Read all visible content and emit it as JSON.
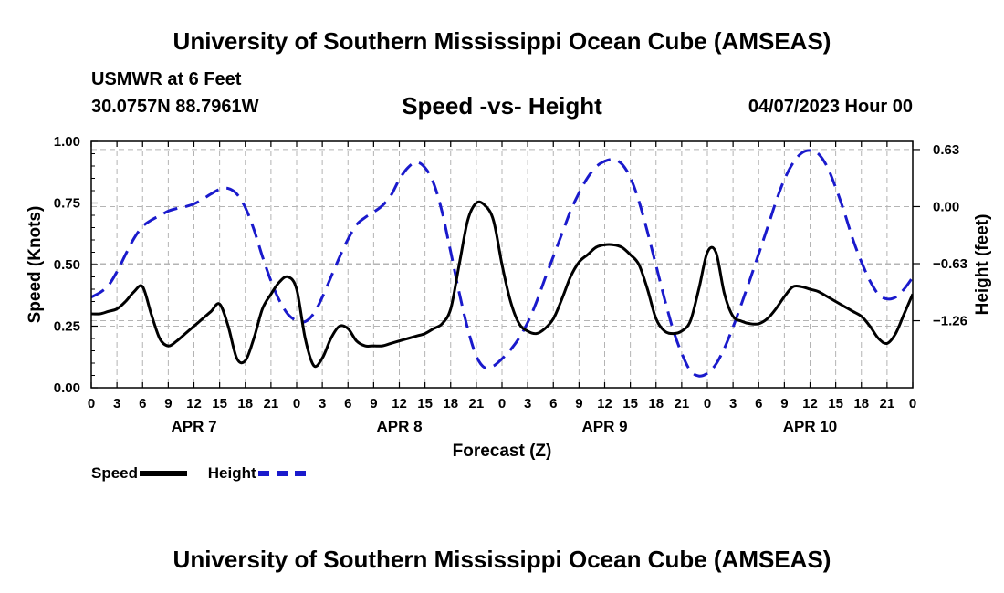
{
  "header": {
    "title": "University of Southern Mississippi Ocean Cube (AMSEAS)",
    "station": "USMWR at 6 Feet",
    "coords": "30.0757N  88.7961W",
    "chart_title": "Speed -vs- Height",
    "run_time": "04/07/2023 Hour 00"
  },
  "footer": {
    "title": "University of Southern Mississippi Ocean Cube (AMSEAS)"
  },
  "legend": {
    "speed_label": "Speed",
    "height_label": "Height"
  },
  "colors": {
    "speed": "#000000",
    "height": "#1a1acc",
    "grid": "#b4b4b4"
  },
  "chart_data": {
    "type": "line",
    "title": "Speed -vs- Height",
    "xlabel": "Forecast (Z)",
    "ylabel": "Speed (Knots)",
    "y2label": "Height (feet)",
    "x_range_hours": [
      0,
      96
    ],
    "ylim": [
      0,
      1
    ],
    "y_ticks": [
      "0.00",
      "0.25",
      "0.50",
      "0.75",
      "1.00"
    ],
    "y2lim": [
      -2.0,
      0.72
    ],
    "y2_ticks": [
      {
        "value": 0.63,
        "label": "0.63"
      },
      {
        "value": 0.0,
        "label": "0.00"
      },
      {
        "value": -0.63,
        "label": "−0.63"
      },
      {
        "value": -1.26,
        "label": "−1.26"
      }
    ],
    "x_tick_labels": [
      "0",
      "3",
      "6",
      "9",
      "12",
      "15",
      "18",
      "21",
      "0",
      "3",
      "6",
      "9",
      "12",
      "15",
      "18",
      "21",
      "0",
      "3",
      "6",
      "9",
      "12",
      "15",
      "18",
      "21",
      "0",
      "3",
      "6",
      "9",
      "12",
      "15",
      "18",
      "21",
      "0"
    ],
    "day_labels": [
      {
        "hour": 12,
        "label": "APR 7"
      },
      {
        "hour": 36,
        "label": "APR 8"
      },
      {
        "hour": 60,
        "label": "APR 9"
      },
      {
        "hour": 84,
        "label": "APR 10"
      }
    ],
    "series": [
      {
        "name": "Speed",
        "axis": "left",
        "x": [
          0,
          1,
          2,
          3,
          4,
          5,
          6,
          7,
          8,
          9,
          10,
          11,
          12,
          13,
          14,
          15,
          16,
          17,
          18,
          19,
          20,
          21,
          22,
          23,
          24,
          25,
          26,
          27,
          28,
          29,
          30,
          31,
          32,
          33,
          34,
          35,
          36,
          37,
          38,
          39,
          40,
          41,
          42,
          43,
          44,
          45,
          46,
          47,
          48,
          49,
          50,
          51,
          52,
          53,
          54,
          55,
          56,
          57,
          58,
          59,
          60,
          61,
          62,
          63,
          64,
          65,
          66,
          67,
          68,
          69,
          70,
          71,
          72,
          73,
          74,
          75,
          76,
          77,
          78,
          79,
          80,
          81,
          82,
          83,
          84,
          85,
          86,
          87,
          88,
          89,
          90,
          91,
          92,
          93,
          94,
          95,
          96
        ],
        "values": [
          0.3,
          0.3,
          0.31,
          0.32,
          0.35,
          0.39,
          0.41,
          0.3,
          0.2,
          0.17,
          0.19,
          0.22,
          0.25,
          0.28,
          0.31,
          0.34,
          0.25,
          0.12,
          0.11,
          0.2,
          0.32,
          0.38,
          0.43,
          0.45,
          0.4,
          0.2,
          0.09,
          0.12,
          0.2,
          0.25,
          0.24,
          0.19,
          0.17,
          0.17,
          0.17,
          0.18,
          0.19,
          0.2,
          0.21,
          0.22,
          0.24,
          0.26,
          0.32,
          0.5,
          0.68,
          0.75,
          0.74,
          0.68,
          0.5,
          0.35,
          0.26,
          0.23,
          0.22,
          0.24,
          0.28,
          0.36,
          0.45,
          0.51,
          0.54,
          0.57,
          0.58,
          0.58,
          0.57,
          0.54,
          0.5,
          0.4,
          0.28,
          0.23,
          0.22,
          0.23,
          0.27,
          0.4,
          0.55,
          0.55,
          0.38,
          0.29,
          0.27,
          0.26,
          0.26,
          0.28,
          0.32,
          0.37,
          0.41,
          0.41,
          0.4,
          0.39,
          0.37,
          0.35,
          0.33,
          0.31,
          0.29,
          0.25,
          0.2,
          0.18,
          0.22,
          0.3,
          0.38
        ]
      },
      {
        "name": "Height",
        "axis": "right",
        "x": [
          0,
          1,
          2,
          3,
          4,
          5,
          6,
          7,
          8,
          9,
          10,
          11,
          12,
          13,
          14,
          15,
          16,
          17,
          18,
          19,
          20,
          21,
          22,
          23,
          24,
          25,
          26,
          27,
          28,
          29,
          30,
          31,
          32,
          33,
          34,
          35,
          36,
          37,
          38,
          39,
          40,
          41,
          42,
          43,
          44,
          45,
          46,
          47,
          48,
          49,
          50,
          51,
          52,
          53,
          54,
          55,
          56,
          57,
          58,
          59,
          60,
          61,
          62,
          63,
          64,
          65,
          66,
          67,
          68,
          69,
          70,
          71,
          72,
          73,
          74,
          75,
          76,
          77,
          78,
          79,
          80,
          81,
          82,
          83,
          84,
          85,
          86,
          87,
          88,
          89,
          90,
          91,
          92,
          93,
          94,
          95,
          96
        ],
        "values": [
          -1.0,
          -0.95,
          -0.87,
          -0.72,
          -0.53,
          -0.35,
          -0.22,
          -0.15,
          -0.1,
          -0.05,
          -0.02,
          0.0,
          0.03,
          0.08,
          0.14,
          0.19,
          0.2,
          0.14,
          -0.01,
          -0.25,
          -0.55,
          -0.82,
          -1.04,
          -1.19,
          -1.26,
          -1.27,
          -1.18,
          -1.0,
          -0.78,
          -0.56,
          -0.36,
          -0.2,
          -0.12,
          -0.06,
          0.01,
          0.12,
          0.3,
          0.43,
          0.49,
          0.43,
          0.26,
          -0.06,
          -0.5,
          -0.95,
          -1.35,
          -1.65,
          -1.78,
          -1.76,
          -1.68,
          -1.58,
          -1.45,
          -1.28,
          -1.06,
          -0.8,
          -0.55,
          -0.3,
          -0.05,
          0.15,
          0.32,
          0.44,
          0.5,
          0.52,
          0.47,
          0.32,
          0.06,
          -0.28,
          -0.65,
          -1.02,
          -1.36,
          -1.62,
          -1.81,
          -1.87,
          -1.84,
          -1.74,
          -1.56,
          -1.33,
          -1.07,
          -0.8,
          -0.52,
          -0.24,
          0.05,
          0.3,
          0.48,
          0.59,
          0.62,
          0.58,
          0.44,
          0.21,
          -0.06,
          -0.36,
          -0.61,
          -0.82,
          -0.97,
          -1.02,
          -1.0,
          -0.91,
          -0.78
        ]
      }
    ]
  }
}
